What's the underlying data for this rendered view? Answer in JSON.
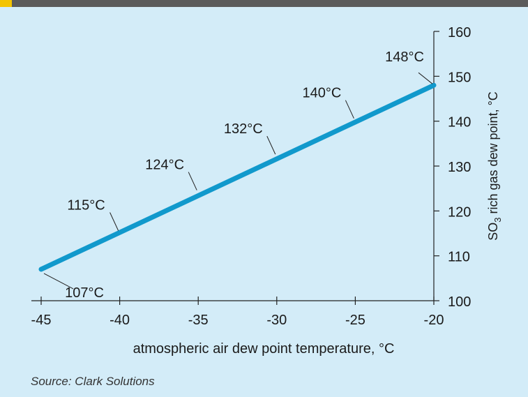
{
  "chart_data": {
    "type": "line",
    "xlabel": "atmospheric air dew point temperature, °C",
    "ylabel_main": "SO",
    "ylabel_sub": "3",
    "ylabel_rest": " rich gas dew point, °C",
    "xlim": [
      -45,
      -20
    ],
    "ylim": [
      100,
      160
    ],
    "x_ticks": [
      "-45",
      "-40",
      "-35",
      "-30",
      "-25",
      "-20"
    ],
    "x_tick_values": [
      -45,
      -40,
      -35,
      -30,
      -25,
      -20
    ],
    "y_ticks": [
      "100",
      "110",
      "120",
      "130",
      "140",
      "150",
      "160"
    ],
    "y_tick_values": [
      100,
      110,
      120,
      130,
      140,
      150,
      160
    ],
    "series": [
      {
        "x": [
          -45,
          -20
        ],
        "y": [
          107,
          148
        ],
        "color": "#1199cc"
      }
    ],
    "annotations": [
      {
        "text": "107°C",
        "x": -45,
        "y": 107
      },
      {
        "text": "115°C",
        "x": -40,
        "y": 115
      },
      {
        "text": "124°C",
        "x": -35,
        "y": 124
      },
      {
        "text": "132°C",
        "x": -30,
        "y": 132
      },
      {
        "text": "140°C",
        "x": -25,
        "y": 140
      },
      {
        "text": "148°C",
        "x": -20,
        "y": 148
      }
    ]
  },
  "source": "Source: Clark Solutions",
  "colors": {
    "background": "#d3ecf8",
    "line": "#1199cc",
    "axis": "#222222",
    "topbar": "#5b5b5b",
    "accent": "#f3c400"
  }
}
